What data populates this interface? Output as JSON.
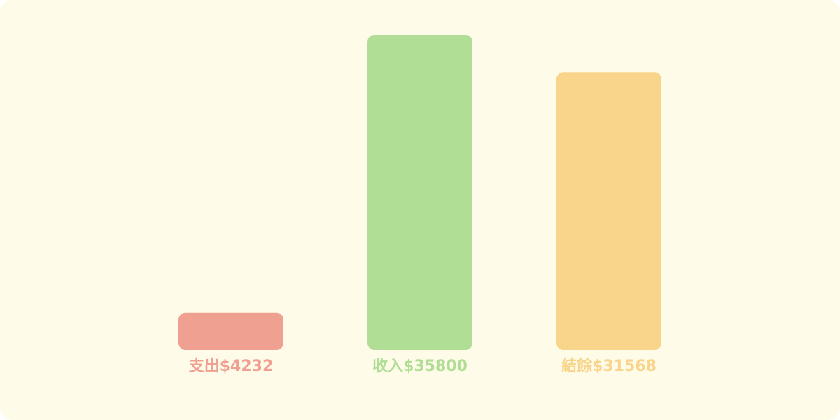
{
  "chart_data": {
    "type": "bar",
    "title": "",
    "xlabel": "",
    "ylabel": "",
    "ylim": [
      0,
      35800
    ],
    "grid": false,
    "categories": [
      "支出",
      "收入",
      "結餘"
    ],
    "values": [
      4232,
      35800,
      31568
    ],
    "labels": [
      "支出$4232",
      "收入$35800",
      "結餘$31568"
    ],
    "colors": [
      "#f0a090",
      "#b0de94",
      "#f8d58a"
    ],
    "background": "#fefbe9"
  }
}
